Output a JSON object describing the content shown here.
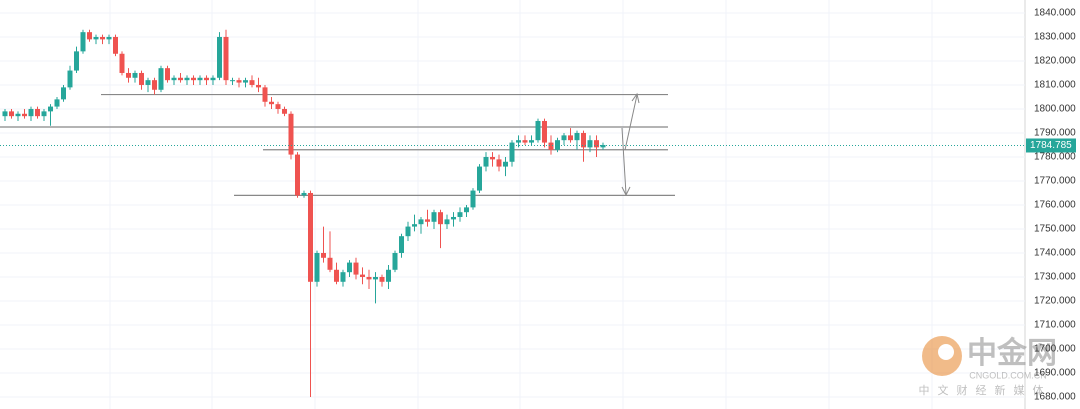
{
  "chart_data": {
    "type": "candlestick",
    "series": [
      {
        "up_color": "#26a69a",
        "down_color": "#ef5350",
        "open": [
          1797,
          1799,
          1797,
          1798,
          1797,
          1800,
          1797,
          1799,
          1801,
          1804,
          1809,
          1816,
          1824,
          1832,
          1829,
          1830,
          1829,
          1830,
          1823,
          1815,
          1813,
          1815,
          1810,
          1812,
          1808,
          1817,
          1812,
          1813,
          1812,
          1813,
          1812,
          1813,
          1812,
          1813,
          1830,
          1812,
          1812,
          1811,
          1812,
          1810,
          1809,
          1803,
          1802,
          1800,
          1798,
          1781,
          1764,
          1765,
          1728,
          1740,
          1738,
          1733,
          1728,
          1732,
          1736,
          1731,
          1730,
          1729,
          1730,
          1728,
          1733,
          1740,
          1747,
          1751,
          1752,
          1754,
          1753,
          1757,
          1752,
          1754,
          1755,
          1757,
          1759,
          1766,
          1776,
          1780,
          1779,
          1776,
          1778,
          1786,
          1787,
          1786,
          1787,
          1795,
          1786,
          1783,
          1787,
          1789,
          1787,
          1790,
          1784,
          1787,
          1784
        ],
        "high": [
          1800,
          1800,
          1799,
          1800,
          1801,
          1801,
          1800,
          1802,
          1805,
          1810,
          1818,
          1826,
          1833,
          1833,
          1831,
          1831,
          1831,
          1831,
          1824,
          1817,
          1816,
          1816,
          1813,
          1813,
          1818,
          1818,
          1814,
          1815,
          1814,
          1814,
          1814,
          1814,
          1814,
          1832,
          1833,
          1813,
          1813,
          1813,
          1814,
          1813,
          1810,
          1805,
          1803,
          1801,
          1799,
          1782,
          1766,
          1766,
          1741,
          1751,
          1749,
          1736,
          1733,
          1737,
          1738,
          1734,
          1733,
          1732,
          1731,
          1735,
          1741,
          1748,
          1753,
          1756,
          1755,
          1758,
          1758,
          1758,
          1756,
          1757,
          1759,
          1760,
          1767,
          1777,
          1782,
          1782,
          1781,
          1780,
          1787,
          1789,
          1789,
          1789,
          1796,
          1796,
          1789,
          1788,
          1790,
          1792,
          1791,
          1791,
          1789,
          1789,
          1786
        ],
        "low": [
          1795,
          1796,
          1795,
          1796,
          1795,
          1796,
          1795,
          1793,
          1800,
          1803,
          1808,
          1815,
          1823,
          1828,
          1827,
          1827,
          1827,
          1822,
          1814,
          1811,
          1811,
          1808,
          1807,
          1806,
          1807,
          1811,
          1810,
          1811,
          1810,
          1810,
          1810,
          1810,
          1810,
          1812,
          1810,
          1810,
          1809,
          1809,
          1809,
          1807,
          1801,
          1800,
          1798,
          1797,
          1779,
          1763,
          1763,
          1680,
          1726,
          1736,
          1732,
          1727,
          1726,
          1730,
          1729,
          1727,
          1725,
          1719,
          1726,
          1725,
          1732,
          1738,
          1745,
          1749,
          1748,
          1751,
          1750,
          1742,
          1750,
          1751,
          1753,
          1755,
          1758,
          1765,
          1774,
          1776,
          1774,
          1772,
          1776,
          1784,
          1785,
          1785,
          1786,
          1784,
          1781,
          1782,
          1785,
          1786,
          1783,
          1778,
          1782,
          1780,
          1783
        ],
        "close": [
          1799,
          1797,
          1798,
          1797,
          1800,
          1797,
          1799,
          1801,
          1804,
          1809,
          1816,
          1824,
          1832,
          1829,
          1830,
          1829,
          1830,
          1823,
          1815,
          1813,
          1815,
          1810,
          1812,
          1808,
          1817,
          1812,
          1813,
          1812,
          1813,
          1812,
          1813,
          1812,
          1813,
          1830,
          1812,
          1812,
          1811,
          1812,
          1810,
          1809,
          1803,
          1802,
          1800,
          1798,
          1781,
          1764,
          1765,
          1728,
          1740,
          1738,
          1733,
          1728,
          1732,
          1736,
          1731,
          1730,
          1729,
          1730,
          1728,
          1733,
          1740,
          1747,
          1751,
          1752,
          1754,
          1753,
          1757,
          1752,
          1754,
          1755,
          1757,
          1759,
          1766,
          1776,
          1780,
          1779,
          1776,
          1778,
          1786,
          1787,
          1786,
          1787,
          1795,
          1786,
          1783,
          1787,
          1789,
          1787,
          1790,
          1784,
          1787,
          1784,
          1785
        ]
      }
    ],
    "ylim": [
      1675,
      1845.4
    ],
    "yticks": [
      {
        "value": 1840,
        "label": "1840.000"
      },
      {
        "value": 1830,
        "label": "1830.000"
      },
      {
        "value": 1820,
        "label": "1820.000"
      },
      {
        "value": 1810,
        "label": "1810.000"
      },
      {
        "value": 1800,
        "label": "1800.000"
      },
      {
        "value": 1790,
        "label": "1790.000"
      },
      {
        "value": 1780,
        "label": "1780.000"
      },
      {
        "value": 1770,
        "label": "1770.000"
      },
      {
        "value": 1760,
        "label": "1760.000"
      },
      {
        "value": 1750,
        "label": "1750.000"
      },
      {
        "value": 1740,
        "label": "1740.000"
      },
      {
        "value": 1730,
        "label": "1730.000"
      },
      {
        "value": 1720,
        "label": "1720.000"
      },
      {
        "value": 1710,
        "label": "1710.000"
      },
      {
        "value": 1700,
        "label": "1700.000"
      },
      {
        "value": 1690,
        "label": "1690.000"
      },
      {
        "value": 1680,
        "label": "1680.000"
      }
    ],
    "last_price": 1784.785,
    "last_price_color": "#26a69a",
    "hlines": [
      1806,
      1792.5,
      1783,
      1764
    ],
    "grid": true
  },
  "watermark": {
    "logo": "中金网",
    "domain": "CNGOLD.COM.CN",
    "tagline": "中文财经新媒体"
  }
}
